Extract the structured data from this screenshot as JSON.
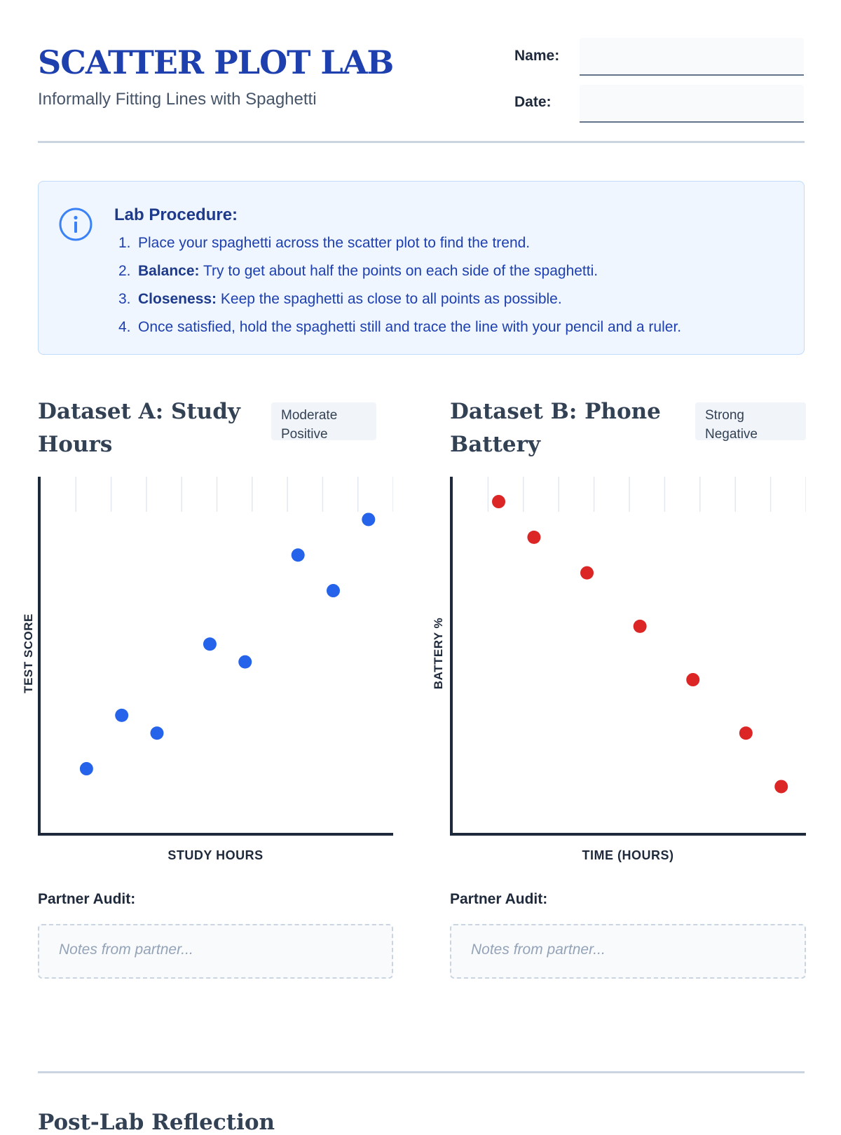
{
  "header": {
    "title": "SCATTER PLOT LAB",
    "subtitle": "Informally Fitting Lines with Spaghetti",
    "name_label": "Name:",
    "date_label": "Date:"
  },
  "procedure": {
    "title": "Lab Procedure:",
    "icon": "info-icon",
    "steps": [
      {
        "num": "1.",
        "bold": "",
        "text": "Place your spaghetti across the scatter plot to find the trend."
      },
      {
        "num": "2.",
        "bold": "Balance:",
        "text": " Try to get about half the points on each side of the spaghetti."
      },
      {
        "num": "3.",
        "bold": "Closeness:",
        "text": " Keep the spaghetti as close to all points as possible."
      },
      {
        "num": "4.",
        "bold": "",
        "text": "Once satisfied, hold the spaghetti still and trace the line with your pencil and a ruler."
      }
    ]
  },
  "datasets": [
    {
      "title": "Dataset A: Study Hours",
      "badge": "Moderate Positive",
      "audit_label": "Partner Audit:",
      "audit_placeholder": "Notes from partner..."
    },
    {
      "title": "Dataset B: Phone Battery",
      "badge": "Strong Negative",
      "audit_label": "Partner Audit:",
      "audit_placeholder": "Notes from partner..."
    }
  ],
  "reflection_title": "Post-Lab Reflection",
  "chart_data": [
    {
      "type": "scatter",
      "title": "Dataset A: Study Hours",
      "xlabel": "STUDY HOURS",
      "ylabel": "TEST SCORE",
      "xlim": [
        0,
        10
      ],
      "ylim": [
        0,
        10
      ],
      "grid": "top tick marks only",
      "color": "#2563eb",
      "points": [
        {
          "x": 1.3,
          "y": 1.8
        },
        {
          "x": 2.3,
          "y": 3.3
        },
        {
          "x": 3.3,
          "y": 2.8
        },
        {
          "x": 4.8,
          "y": 5.3
        },
        {
          "x": 5.8,
          "y": 4.8
        },
        {
          "x": 7.3,
          "y": 7.8
        },
        {
          "x": 8.3,
          "y": 6.8
        },
        {
          "x": 9.3,
          "y": 8.8
        }
      ]
    },
    {
      "type": "scatter",
      "title": "Dataset B: Phone Battery",
      "xlabel": "TIME (HOURS)",
      "ylabel": "BATTERY %",
      "xlim": [
        0,
        10
      ],
      "ylim": [
        0,
        10
      ],
      "grid": "top tick marks only",
      "color": "#dc2626",
      "points": [
        {
          "x": 1.3,
          "y": 9.3
        },
        {
          "x": 2.3,
          "y": 8.3
        },
        {
          "x": 3.8,
          "y": 7.3
        },
        {
          "x": 5.3,
          "y": 5.8
        },
        {
          "x": 6.8,
          "y": 4.3
        },
        {
          "x": 8.3,
          "y": 2.8
        },
        {
          "x": 9.3,
          "y": 1.3
        }
      ]
    }
  ]
}
